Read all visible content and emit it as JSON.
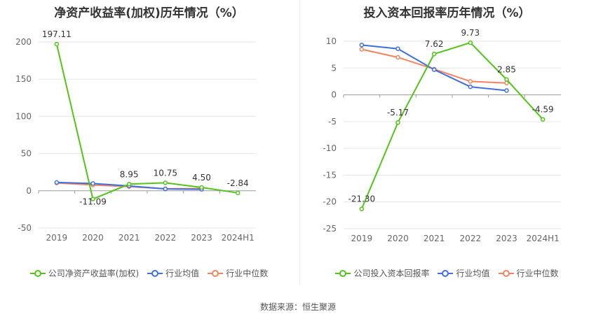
{
  "source_label": "数据来源：恒生聚源",
  "chart_data": [
    {
      "type": "line",
      "title": "净资产收益率(加权)历年情况（%）",
      "categories": [
        "2019",
        "2020",
        "2021",
        "2022",
        "2023",
        "2024H1"
      ],
      "yticks": [
        -50,
        0,
        50,
        100,
        150,
        200
      ],
      "ylim": [
        -50,
        200
      ],
      "series": [
        {
          "name": "公司净资产收益率(加权)",
          "color": "#52c41a",
          "values": [
            197.11,
            -11.09,
            8.95,
            10.75,
            4.5,
            -2.84
          ],
          "labels": [
            "197.11",
            "-11.09",
            "8.95",
            "10.75",
            "4.50",
            "-2.84"
          ]
        },
        {
          "name": "行业均值",
          "color": "#3f6fe0",
          "values": [
            11.2,
            9.8,
            6.5,
            2.5,
            2.0,
            null
          ]
        },
        {
          "name": "行业中位数",
          "color": "#f4845f",
          "values": [
            10.5,
            7.8,
            5.6,
            2.8,
            3.0,
            null
          ]
        }
      ],
      "grid": true,
      "legend": "bottom"
    },
    {
      "type": "line",
      "title": "投入资本回报率历年情况（%）",
      "categories": [
        "2019",
        "2020",
        "2021",
        "2022",
        "2023",
        "2024H1"
      ],
      "yticks": [
        -25,
        -20,
        -15,
        -10,
        -5,
        0,
        5,
        10
      ],
      "ylim": [
        -25,
        10
      ],
      "series": [
        {
          "name": "公司投入资本回报率",
          "color": "#52c41a",
          "values": [
            -21.3,
            -5.17,
            7.62,
            9.73,
            2.85,
            -4.59
          ],
          "labels": [
            "-21.30",
            "-5.17",
            "7.62",
            "9.73",
            "2.85",
            "-4.59"
          ]
        },
        {
          "name": "行业均值",
          "color": "#3f6fe0",
          "values": [
            9.3,
            8.6,
            4.7,
            1.5,
            0.8,
            null
          ]
        },
        {
          "name": "行业中位数",
          "color": "#f4845f",
          "values": [
            8.5,
            7.0,
            4.8,
            2.5,
            2.2,
            null
          ]
        }
      ],
      "grid": true,
      "legend": "bottom"
    }
  ]
}
